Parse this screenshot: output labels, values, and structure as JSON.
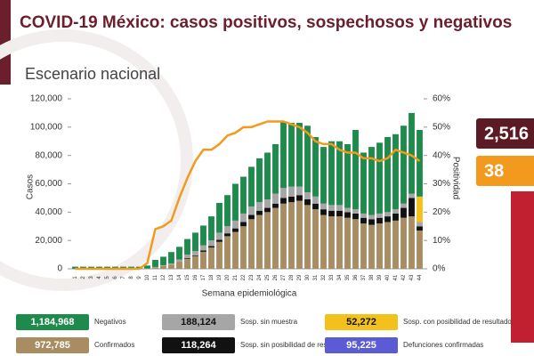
{
  "chart_data": {
    "type": "bar",
    "title": "COVID-19 México: casos positivos, sospechosos y negativos",
    "subtitle": "Escenario nacional",
    "ylabel": "Casos",
    "y2label": "Positividad",
    "xlabel": "Semana epidemiológica",
    "categories": [
      "1",
      "2",
      "3",
      "4",
      "5",
      "6",
      "7",
      "8",
      "9",
      "10",
      "11",
      "12",
      "13",
      "14",
      "15",
      "16",
      "17",
      "18",
      "19",
      "20",
      "21",
      "22",
      "23",
      "24",
      "25",
      "26",
      "27",
      "28",
      "29",
      "30",
      "31",
      "32",
      "33",
      "34",
      "35",
      "36",
      "37",
      "38",
      "39",
      "40",
      "41",
      "42",
      "43",
      "44"
    ],
    "ylim": [
      0,
      120000
    ],
    "yticks": [
      {
        "value": 0,
        "label": "0"
      },
      {
        "value": 20000,
        "label": "20,000"
      },
      {
        "value": 40000,
        "label": "40,000"
      },
      {
        "value": 60000,
        "label": "60,000"
      },
      {
        "value": 80000,
        "label": "80,000"
      },
      {
        "value": 100000,
        "label": "100,000"
      },
      {
        "value": 120000,
        "label": "120,000"
      }
    ],
    "y2lim": [
      0,
      60
    ],
    "y2ticks": [
      {
        "value": 0,
        "label": "0%"
      },
      {
        "value": 10,
        "label": "10%"
      },
      {
        "value": 20,
        "label": "20%"
      },
      {
        "value": 30,
        "label": "30%"
      },
      {
        "value": 40,
        "label": "40%"
      },
      {
        "value": 50,
        "label": "50%"
      },
      {
        "value": 60,
        "label": "60%"
      }
    ],
    "series": [
      {
        "name": "Confirmados",
        "total": "972,785",
        "color": "#a88d63",
        "values": [
          0,
          0,
          0,
          0,
          0,
          0,
          0,
          0,
          0,
          200,
          1000,
          2000,
          3000,
          5000,
          7000,
          9000,
          12000,
          15000,
          19000,
          23000,
          26000,
          30000,
          35000,
          38000,
          40000,
          43000,
          46000,
          47000,
          48000,
          45000,
          42000,
          38000,
          37000,
          37000,
          36000,
          35000,
          32000,
          31000,
          32000,
          33000,
          34000,
          36000,
          37000,
          27000
        ]
      },
      {
        "name": "Sosp. sin posibilidad de resultado",
        "total": "118,264",
        "color": "#111111",
        "values": [
          0,
          0,
          0,
          0,
          0,
          0,
          0,
          0,
          0,
          0,
          0,
          0,
          0,
          0,
          500,
          500,
          1000,
          1000,
          1500,
          2000,
          2500,
          3000,
          3000,
          3000,
          3000,
          3000,
          4000,
          4000,
          4000,
          4000,
          4000,
          4000,
          4000,
          4000,
          4000,
          4000,
          4000,
          4000,
          4000,
          4000,
          5000,
          7000,
          13000,
          3000
        ]
      },
      {
        "name": "Sosp. sin muestra",
        "total": "188,124",
        "color": "#a6a6a6",
        "values": [
          0,
          0,
          0,
          0,
          0,
          0,
          0,
          0,
          0,
          100,
          300,
          500,
          800,
          1500,
          2500,
          3000,
          3500,
          4000,
          5000,
          5000,
          5500,
          6000,
          6000,
          6000,
          6000,
          7000,
          7000,
          7000,
          6000,
          5000,
          5000,
          4000,
          4000,
          4000,
          3000,
          3000,
          3000,
          3000,
          3000,
          3000,
          3000,
          3000,
          3000,
          3000
        ]
      },
      {
        "name": "Sosp. con posibilidad de resultado",
        "total": "52,272",
        "color": "#f2c11c",
        "values": [
          0,
          0,
          0,
          0,
          0,
          0,
          0,
          0,
          0,
          0,
          0,
          0,
          0,
          0,
          0,
          0,
          0,
          0,
          0,
          0,
          0,
          0,
          0,
          0,
          0,
          0,
          0,
          0,
          0,
          0,
          0,
          0,
          0,
          0,
          0,
          0,
          0,
          0,
          0,
          0,
          0,
          0,
          0,
          18000
        ]
      },
      {
        "name": "Negativos",
        "total": "1,184,968",
        "color": "#1e8a4c",
        "values": [
          1500,
          1500,
          1500,
          1500,
          1500,
          1500,
          1500,
          1500,
          1500,
          2000,
          5000,
          6000,
          8000,
          9000,
          11000,
          13000,
          14000,
          17000,
          21000,
          22000,
          26000,
          26000,
          28000,
          31000,
          33000,
          35000,
          47000,
          45000,
          45000,
          47000,
          42000,
          40000,
          45000,
          45000,
          45000,
          56000,
          43000,
          48000,
          50000,
          53000,
          53000,
          55000,
          57000,
          47000
        ]
      },
      {
        "name": "Positividad",
        "axis": "y2",
        "type": "line",
        "color": "#f39a1e",
        "values": [
          0,
          0,
          0,
          0,
          0,
          0,
          0,
          0,
          0,
          2,
          14,
          15,
          17,
          25,
          32,
          38,
          42,
          42,
          44,
          47,
          48,
          50,
          50,
          51,
          52,
          52,
          52,
          51,
          50,
          48,
          45,
          44,
          44,
          42,
          41,
          41,
          39,
          39,
          38,
          39,
          42,
          41,
          40,
          38
        ]
      }
    ],
    "extra_legend": {
      "name": "Defunciones confirmadas",
      "total": "95,225",
      "color": "#5b5bd6"
    },
    "side_panels": [
      {
        "text": "2,516",
        "color": "#5c1a25"
      },
      {
        "text": "38",
        "color": "#f39a1e"
      }
    ]
  }
}
